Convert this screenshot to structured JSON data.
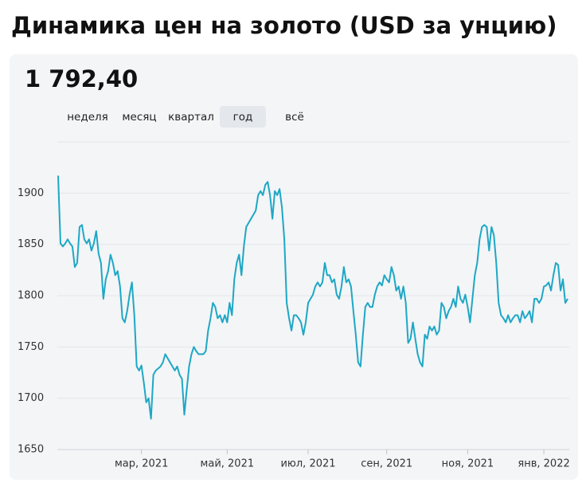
{
  "header": {
    "title": "Динамика цен на золото (USD за унцию)",
    "price": "1 792,40",
    "periods": [
      "неделя",
      "месяц",
      "квартал",
      "год",
      "всё"
    ],
    "selected_period": 3
  },
  "chart_data": {
    "type": "line",
    "color": "#1ea7c5",
    "grid": true,
    "ylim": [
      1650,
      1950
    ],
    "yticks": [
      1650,
      1700,
      1750,
      1800,
      1850,
      1900
    ],
    "xticks": [
      {
        "value": 35,
        "label": "мар, 2021"
      },
      {
        "value": 71,
        "label": "май, 2021"
      },
      {
        "value": 105,
        "label": "июл, 2021"
      },
      {
        "value": 138,
        "label": "сен, 2021"
      },
      {
        "value": 172,
        "label": "ноя, 2021"
      },
      {
        "value": 204,
        "label": "янв, 2022"
      }
    ],
    "values": [
      1917,
      1851,
      1848,
      1851,
      1855,
      1851,
      1848,
      1828,
      1832,
      1867,
      1869,
      1855,
      1851,
      1855,
      1844,
      1851,
      1863,
      1841,
      1832,
      1797,
      1816,
      1824,
      1840,
      1832,
      1820,
      1824,
      1809,
      1778,
      1774,
      1785,
      1801,
      1813,
      1781,
      1731,
      1727,
      1732,
      1715,
      1696,
      1700,
      1680,
      1723,
      1727,
      1729,
      1731,
      1735,
      1743,
      1739,
      1735,
      1731,
      1727,
      1731,
      1723,
      1719,
      1684,
      1708,
      1731,
      1743,
      1750,
      1746,
      1743,
      1743,
      1743,
      1746,
      1766,
      1778,
      1793,
      1789,
      1778,
      1781,
      1774,
      1781,
      1774,
      1793,
      1781,
      1816,
      1832,
      1840,
      1820,
      1848,
      1867,
      1871,
      1875,
      1879,
      1883,
      1898,
      1902,
      1898,
      1908,
      1911,
      1898,
      1875,
      1902,
      1898,
      1904,
      1886,
      1855,
      1793,
      1778,
      1766,
      1781,
      1781,
      1778,
      1774,
      1762,
      1774,
      1793,
      1797,
      1801,
      1809,
      1813,
      1809,
      1813,
      1832,
      1820,
      1820,
      1813,
      1816,
      1801,
      1797,
      1809,
      1828,
      1813,
      1816,
      1809,
      1785,
      1762,
      1735,
      1731,
      1762,
      1789,
      1793,
      1789,
      1789,
      1801,
      1809,
      1813,
      1810,
      1820,
      1816,
      1813,
      1828,
      1820,
      1805,
      1809,
      1797,
      1809,
      1793,
      1754,
      1758,
      1774,
      1758,
      1743,
      1735,
      1731,
      1762,
      1758,
      1770,
      1766,
      1770,
      1762,
      1766,
      1793,
      1789,
      1778,
      1785,
      1789,
      1797,
      1789,
      1809,
      1797,
      1793,
      1801,
      1789,
      1774,
      1797,
      1820,
      1832,
      1855,
      1867,
      1869,
      1867,
      1844,
      1867,
      1859,
      1832,
      1793,
      1781,
      1778,
      1774,
      1781,
      1774,
      1778,
      1781,
      1781,
      1774,
      1785,
      1778,
      1781,
      1785,
      1774,
      1797,
      1797,
      1793,
      1797,
      1809,
      1810,
      1813,
      1805,
      1820,
      1832,
      1830,
      1805,
      1816,
      1793,
      1797
    ]
  }
}
